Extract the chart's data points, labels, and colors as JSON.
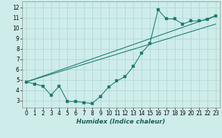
{
  "xlabel": "Humidex (Indice chaleur)",
  "bg_color": "#ceecea",
  "grid_color": "#b0d8d4",
  "line_color": "#1a7a6e",
  "xlim": [
    -0.5,
    23.5
  ],
  "ylim": [
    2.3,
    12.6
  ],
  "xticks": [
    0,
    1,
    2,
    3,
    4,
    5,
    6,
    7,
    8,
    9,
    10,
    11,
    12,
    13,
    14,
    15,
    16,
    17,
    18,
    19,
    20,
    21,
    22,
    23
  ],
  "yticks": [
    3,
    4,
    5,
    6,
    7,
    8,
    9,
    10,
    11,
    12
  ],
  "line1_x": [
    0,
    1,
    2,
    3,
    4,
    5,
    6,
    7,
    8,
    9,
    10,
    11,
    12,
    13,
    14,
    15,
    16,
    17,
    18,
    19,
    20,
    21,
    22,
    23
  ],
  "line1_y": [
    4.8,
    4.6,
    4.4,
    3.5,
    4.4,
    2.9,
    2.9,
    2.8,
    2.7,
    3.4,
    4.3,
    4.9,
    5.3,
    6.3,
    7.6,
    8.5,
    11.8,
    10.9,
    10.9,
    10.4,
    10.7,
    10.7,
    10.85,
    11.2
  ],
  "line2_x": [
    0,
    23
  ],
  "line2_y": [
    4.8,
    11.2
  ],
  "line3_x": [
    0,
    23
  ],
  "line3_y": [
    4.8,
    10.4
  ],
  "marker_size": 2.5,
  "xlabel_fontsize": 6.5,
  "tick_fontsize": 5.5
}
